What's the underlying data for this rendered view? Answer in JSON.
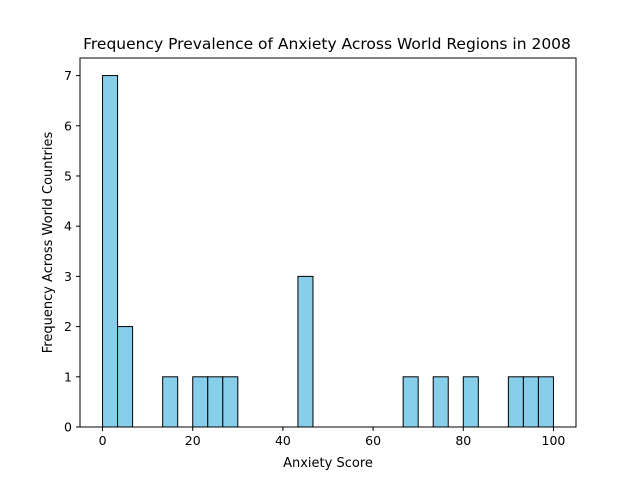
{
  "chart_data": {
    "type": "bar",
    "title": "Frequency Prevalence of Anxiety Across World Regions in 2008",
    "xlabel": "Anxiety Score",
    "ylabel": "Frequency Across World Countries",
    "xlim": [
      -5,
      105
    ],
    "ylim": [
      0,
      7.35
    ],
    "xticks": [
      0,
      20,
      40,
      60,
      80,
      100
    ],
    "yticks": [
      0,
      1,
      2,
      3,
      4,
      5,
      6,
      7
    ],
    "grid": false,
    "bin_edges": [
      0,
      3.333,
      6.667,
      10,
      13.333,
      16.667,
      20,
      23.333,
      26.667,
      30,
      33.333,
      36.667,
      40,
      43.333,
      46.667,
      50,
      53.333,
      56.667,
      60,
      63.333,
      66.667,
      70,
      73.333,
      76.667,
      80,
      83.333,
      86.667,
      90,
      93.333,
      96.667,
      100
    ],
    "values": [
      7,
      2,
      0,
      0,
      1,
      0,
      1,
      1,
      1,
      0,
      0,
      0,
      0,
      3,
      0,
      0,
      0,
      0,
      0,
      0,
      1,
      0,
      1,
      0,
      1,
      0,
      0,
      1,
      1,
      1
    ],
    "bar_color": "#87ceeb"
  }
}
